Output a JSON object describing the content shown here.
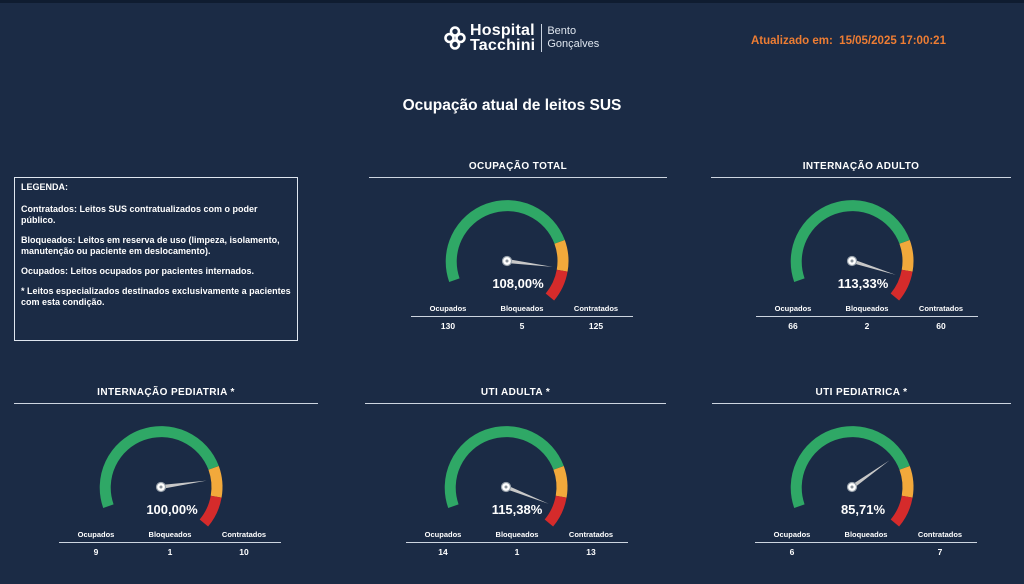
{
  "header": {
    "logo_line1": "Hospital",
    "logo_line2": "Tacchini",
    "logo_sub1": "Bento",
    "logo_sub2": "Gonçalves",
    "updated_text": "Atualizado em:  15/05/2025 17:00:21"
  },
  "page_title": "Ocupação atual de leitos SUS",
  "legend": {
    "title": "LEGENDA:",
    "contratados": "Contratados: Leitos SUS contratualizados com o poder público.",
    "bloqueados": "Bloqueados: Leitos em reserva de uso (limpeza, isolamento, manutenção ou paciente em deslocamento).",
    "ocupados": "Ocupados: Leitos ocupados por pacientes internados.",
    "especializados": "* Leitos especializados destinados exclusivamente a pacientes com esta condição."
  },
  "stat_labels": {
    "ocupados": "Ocupados",
    "bloqueados": "Bloqueados",
    "contratados": "Contratados"
  },
  "colors": {
    "background": "#1b2b45",
    "accent": "#ee7d33",
    "gauge_green": "#2fa866",
    "gauge_yellow": "#f2a93b",
    "gauge_red": "#d52b2b",
    "needle": "#c8c8c8"
  },
  "panels": [
    {
      "title": "OCUPAÇÃO TOTAL",
      "percent": "108,00%",
      "ocupados": "130",
      "bloqueados": "5",
      "contratados": "125",
      "needle_value": 1.08
    },
    {
      "title": "INTERNAÇÃO ADULTO",
      "percent": "113,33%",
      "ocupados": "66",
      "bloqueados": "2",
      "contratados": "60",
      "needle_value": 1.1333
    },
    {
      "title": "INTERNAÇÃO PEDIATRIA *",
      "percent": "100,00%",
      "ocupados": "9",
      "bloqueados": "1",
      "contratados": "10",
      "needle_value": 1.0
    },
    {
      "title": "UTI ADULTA *",
      "percent": "115,38%",
      "ocupados": "14",
      "bloqueados": "1",
      "contratados": "13",
      "needle_value": 1.1538
    },
    {
      "title": "UTI PEDIATRICA *",
      "percent": "85,71%",
      "ocupados": "6",
      "bloqueados": "",
      "contratados": "7",
      "needle_value": 0.8571
    }
  ]
}
